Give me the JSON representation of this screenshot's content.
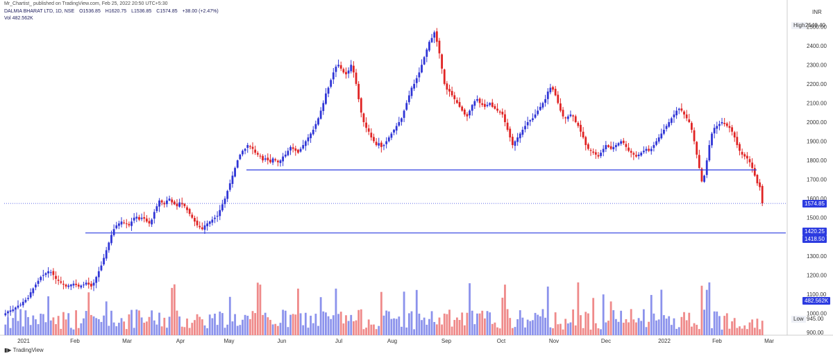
{
  "caption": "Mr_Chartist_ published on TradingView.com, Feb 25, 2022 20:50 UTC+5:30",
  "header": {
    "symbol": "DALMIA BHARAT LTD, 1D, NSE",
    "open": "O1536.85",
    "high": "H1620.75",
    "low": "L1536.85",
    "close": "C1574.85",
    "change": "+38.00 (+2.47%)",
    "volume": "Vol  482.562K"
  },
  "footer_brand": "TradingView",
  "axis_currency": "INR",
  "tags": {
    "high_label": "High",
    "high_value": "2548.40",
    "last_price": "1574.85",
    "support1": "1420.25",
    "support2": "1418.50",
    "volume_tag": "482.562K",
    "low_label": "Low",
    "low_value": "945.00"
  },
  "colors": {
    "up": "#2f35d6",
    "down": "#e02424",
    "vol_up": "#8b92ec",
    "vol_down": "#ef8a8a",
    "line": "#2c3be0"
  },
  "chart_data": {
    "type": "candlestick",
    "y_axis": {
      "ticks": [
        900,
        1000,
        1100,
        1200,
        1300,
        1400,
        1500,
        1600,
        1700,
        1800,
        1900,
        2000,
        2100,
        2200,
        2300,
        2400,
        2500
      ],
      "tick_labels": [
        "900.00",
        "1000.00",
        "1100.00",
        "1200.00",
        "1300.00",
        "1400.00",
        "1500.00",
        "1600.00",
        "1700.00",
        "1800.00",
        "1900.00",
        "2000.00",
        "2100.00",
        "2200.00",
        "2300.00",
        "2400.00",
        "2500.00"
      ]
    },
    "x_axis": {
      "labels": [
        "2021",
        "Feb",
        "Mar",
        "Apr",
        "May",
        "Jun",
        "Jul",
        "Aug",
        "Sep",
        "Oct",
        "Nov",
        "Dec",
        "2022",
        "Feb",
        "Mar"
      ]
    },
    "horizontal_lines": [
      1750,
      1420.25
    ],
    "last_price": 1574.85,
    "closes": [
      1000,
      1010,
      1015,
      1020,
      1030,
      1040,
      1045,
      1060,
      1070,
      1080,
      1110,
      1130,
      1150,
      1170,
      1190,
      1200,
      1210,
      1220,
      1215,
      1200,
      1180,
      1170,
      1160,
      1150,
      1140,
      1145,
      1150,
      1155,
      1148,
      1140,
      1145,
      1150,
      1160,
      1150,
      1140,
      1160,
      1190,
      1220,
      1250,
      1290,
      1330,
      1370,
      1410,
      1440,
      1460,
      1470,
      1480,
      1475,
      1470,
      1460,
      1480,
      1500,
      1505,
      1490,
      1500,
      1495,
      1480,
      1470,
      1490,
      1530,
      1560,
      1590,
      1580,
      1570,
      1590,
      1600,
      1580,
      1570,
      1560,
      1580,
      1570,
      1560,
      1540,
      1520,
      1500,
      1480,
      1460,
      1450,
      1440,
      1460,
      1470,
      1480,
      1490,
      1500,
      1510,
      1540,
      1570,
      1600,
      1640,
      1680,
      1720,
      1760,
      1800,
      1830,
      1850,
      1860,
      1880,
      1870,
      1860,
      1840,
      1830,
      1820,
      1800,
      1810,
      1800,
      1790,
      1810,
      1800,
      1790,
      1800,
      1820,
      1830,
      1850,
      1870,
      1860,
      1850,
      1840,
      1860,
      1880,
      1900,
      1920,
      1940,
      1960,
      1990,
      2020,
      2060,
      2100,
      2150,
      2180,
      2220,
      2260,
      2290,
      2300,
      2280,
      2260,
      2250,
      2270,
      2300,
      2260,
      2200,
      2120,
      2050,
      2000,
      1970,
      1950,
      1920,
      1900,
      1880,
      1890,
      1870,
      1880,
      1900,
      1920,
      1940,
      1960,
      1980,
      2000,
      2020,
      2060,
      2100,
      2140,
      2180,
      2200,
      2230,
      2260,
      2300,
      2340,
      2380,
      2420,
      2440,
      2470,
      2420,
      2360,
      2280,
      2200,
      2170,
      2160,
      2140,
      2120,
      2100,
      2080,
      2060,
      2040,
      2030,
      2060,
      2090,
      2110,
      2120,
      2100,
      2090,
      2080,
      2090,
      2100,
      2080,
      2070,
      2060,
      2050,
      2040,
      2000,
      1960,
      1920,
      1880,
      1900,
      1920,
      1940,
      1960,
      1980,
      2000,
      2010,
      2020,
      2040,
      2060,
      2080,
      2100,
      2120,
      2160,
      2180,
      2170,
      2140,
      2100,
      2060,
      2030,
      2020,
      2030,
      2040,
      2030,
      2000,
      1980,
      1950,
      1920,
      1880,
      1860,
      1850,
      1840,
      1830,
      1820,
      1840,
      1860,
      1880,
      1870,
      1860,
      1870,
      1880,
      1890,
      1900,
      1890,
      1870,
      1850,
      1840,
      1830,
      1820,
      1830,
      1840,
      1850,
      1860,
      1850,
      1860,
      1880,
      1900,
      1920,
      1940,
      1960,
      1980,
      2000,
      2020,
      2040,
      2060,
      2070,
      2060,
      2040,
      2020,
      2000,
      1960,
      1900,
      1830,
      1760,
      1690,
      1720,
      1800,
      1880,
      1940,
      1970,
      1980,
      1990,
      2000,
      1990,
      1980,
      1970,
      1950,
      1920,
      1880,
      1850,
      1830,
      1820,
      1810,
      1790,
      1760,
      1720,
      1680,
      1660,
      1574.85
    ],
    "volume_shown": true
  }
}
